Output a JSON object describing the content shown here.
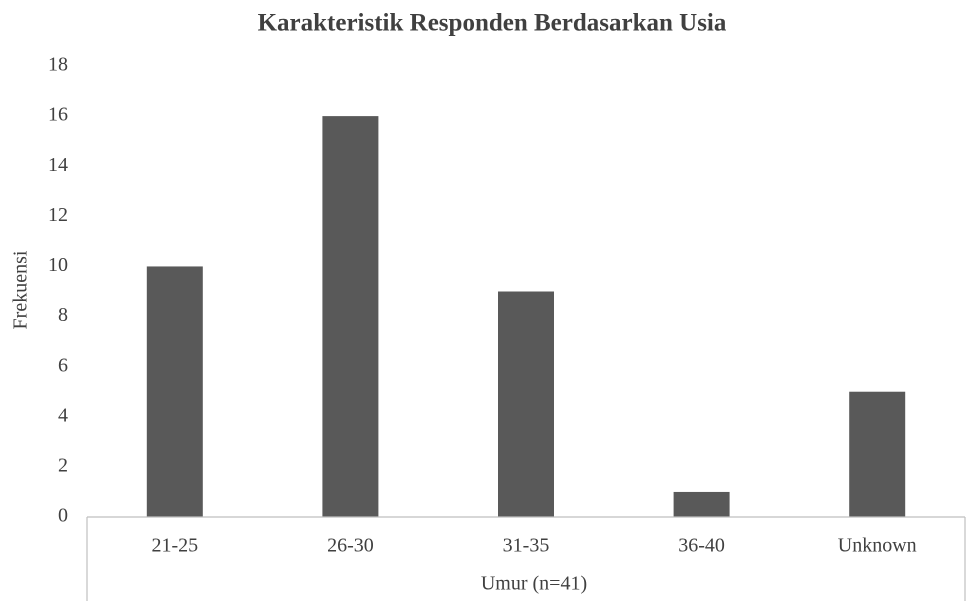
{
  "chart_data": {
    "type": "bar",
    "title": "Karakteristik Responden Berdasarkan Usia",
    "x_label": "Umur (n=41)",
    "y_label": "Frekuensi",
    "categories": [
      "21-25",
      "26-30",
      "31-35",
      "36-40",
      "Unknown"
    ],
    "values": [
      10,
      16,
      9,
      1,
      5
    ],
    "color": "#595959",
    "ylim": [
      0,
      18
    ],
    "yticks": [
      0,
      2,
      4,
      6,
      8,
      10,
      12,
      14,
      16,
      18
    ],
    "grid": false
  }
}
